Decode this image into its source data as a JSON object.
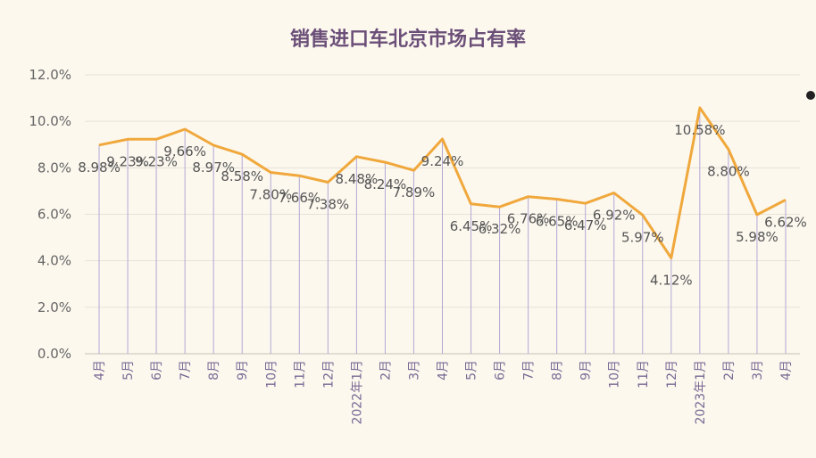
{
  "chart_data": {
    "type": "line",
    "title": "销售进口车北京市场占有率",
    "xlabel": "",
    "ylabel": "",
    "ylim": [
      0,
      12
    ],
    "y_ticks": [
      "0.0%",
      "2.0%",
      "4.0%",
      "6.0%",
      "8.0%",
      "10.0%",
      "12.0%"
    ],
    "grid": true,
    "legend": "none",
    "categories": [
      "4月",
      "5月",
      "6月",
      "7月",
      "8月",
      "9月",
      "10月",
      "11月",
      "12月",
      "2022年1月",
      "2月",
      "3月",
      "4月",
      "5月",
      "6月",
      "7月",
      "8月",
      "9月",
      "10月",
      "11月",
      "12月",
      "2023年1月",
      "2月",
      "3月",
      "4月"
    ],
    "series": [
      {
        "values": [
          8.98,
          9.23,
          9.23,
          9.66,
          8.97,
          8.58,
          7.8,
          7.66,
          7.38,
          8.48,
          8.24,
          7.89,
          9.24,
          6.45,
          6.32,
          6.76,
          6.65,
          6.47,
          6.92,
          5.97,
          4.12,
          10.58,
          8.8,
          5.98,
          6.62
        ],
        "labels": [
          "8.98%",
          "9.23%",
          "9.23%",
          "9.66%",
          "8.97%",
          "8.58%",
          "7.80%",
          "7.66%",
          "7.38%",
          "8.48%",
          "8.24%",
          "7.89%",
          "9.24%",
          "6.45%",
          "6.32%",
          "6.76%",
          "6.65%",
          "6.47%",
          "6.92%",
          "5.97%",
          "4.12%",
          "10.58%",
          "8.80%",
          "5.98%",
          "6.62%"
        ]
      }
    ],
    "colors": {
      "line": "#f0a83c",
      "drop_line": "#b3a8d6",
      "grid": "#e6e2da",
      "axis": "#c8c2b8"
    }
  }
}
